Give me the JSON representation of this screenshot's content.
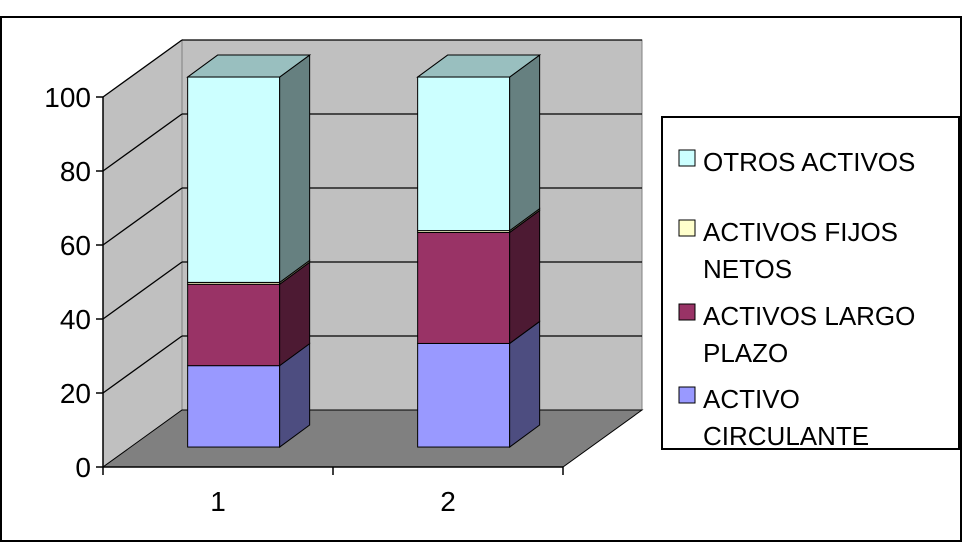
{
  "chart_data": {
    "type": "bar",
    "stacked": true,
    "three_d": true,
    "categories": [
      "1",
      "2"
    ],
    "series": [
      {
        "name": "ACTIVO CIRCULANTE",
        "values": [
          22,
          28
        ],
        "color": "#9999ff"
      },
      {
        "name": "ACTIVOS LARGO PLAZO",
        "values": [
          22,
          30
        ],
        "color": "#993366"
      },
      {
        "name": "ACTIVOS FIJOS NETOS",
        "values": [
          0.5,
          0.5
        ],
        "color": "#ffffcc"
      },
      {
        "name": "OTROS ACTIVOS",
        "values": [
          55.5,
          41.5
        ],
        "color": "#ccffff"
      }
    ],
    "ylim": [
      0,
      100
    ],
    "yticks": [
      "0",
      "20",
      "40",
      "60",
      "80",
      "100"
    ],
    "grid": true,
    "legend_position": "right",
    "legend_order": [
      "OTROS ACTIVOS",
      "ACTIVOS FIJOS NETOS",
      "ACTIVOS LARGO PLAZO",
      "ACTIVO CIRCULANTE"
    ],
    "wall_color": "#c0c0c0",
    "floor_color": "#808080"
  }
}
